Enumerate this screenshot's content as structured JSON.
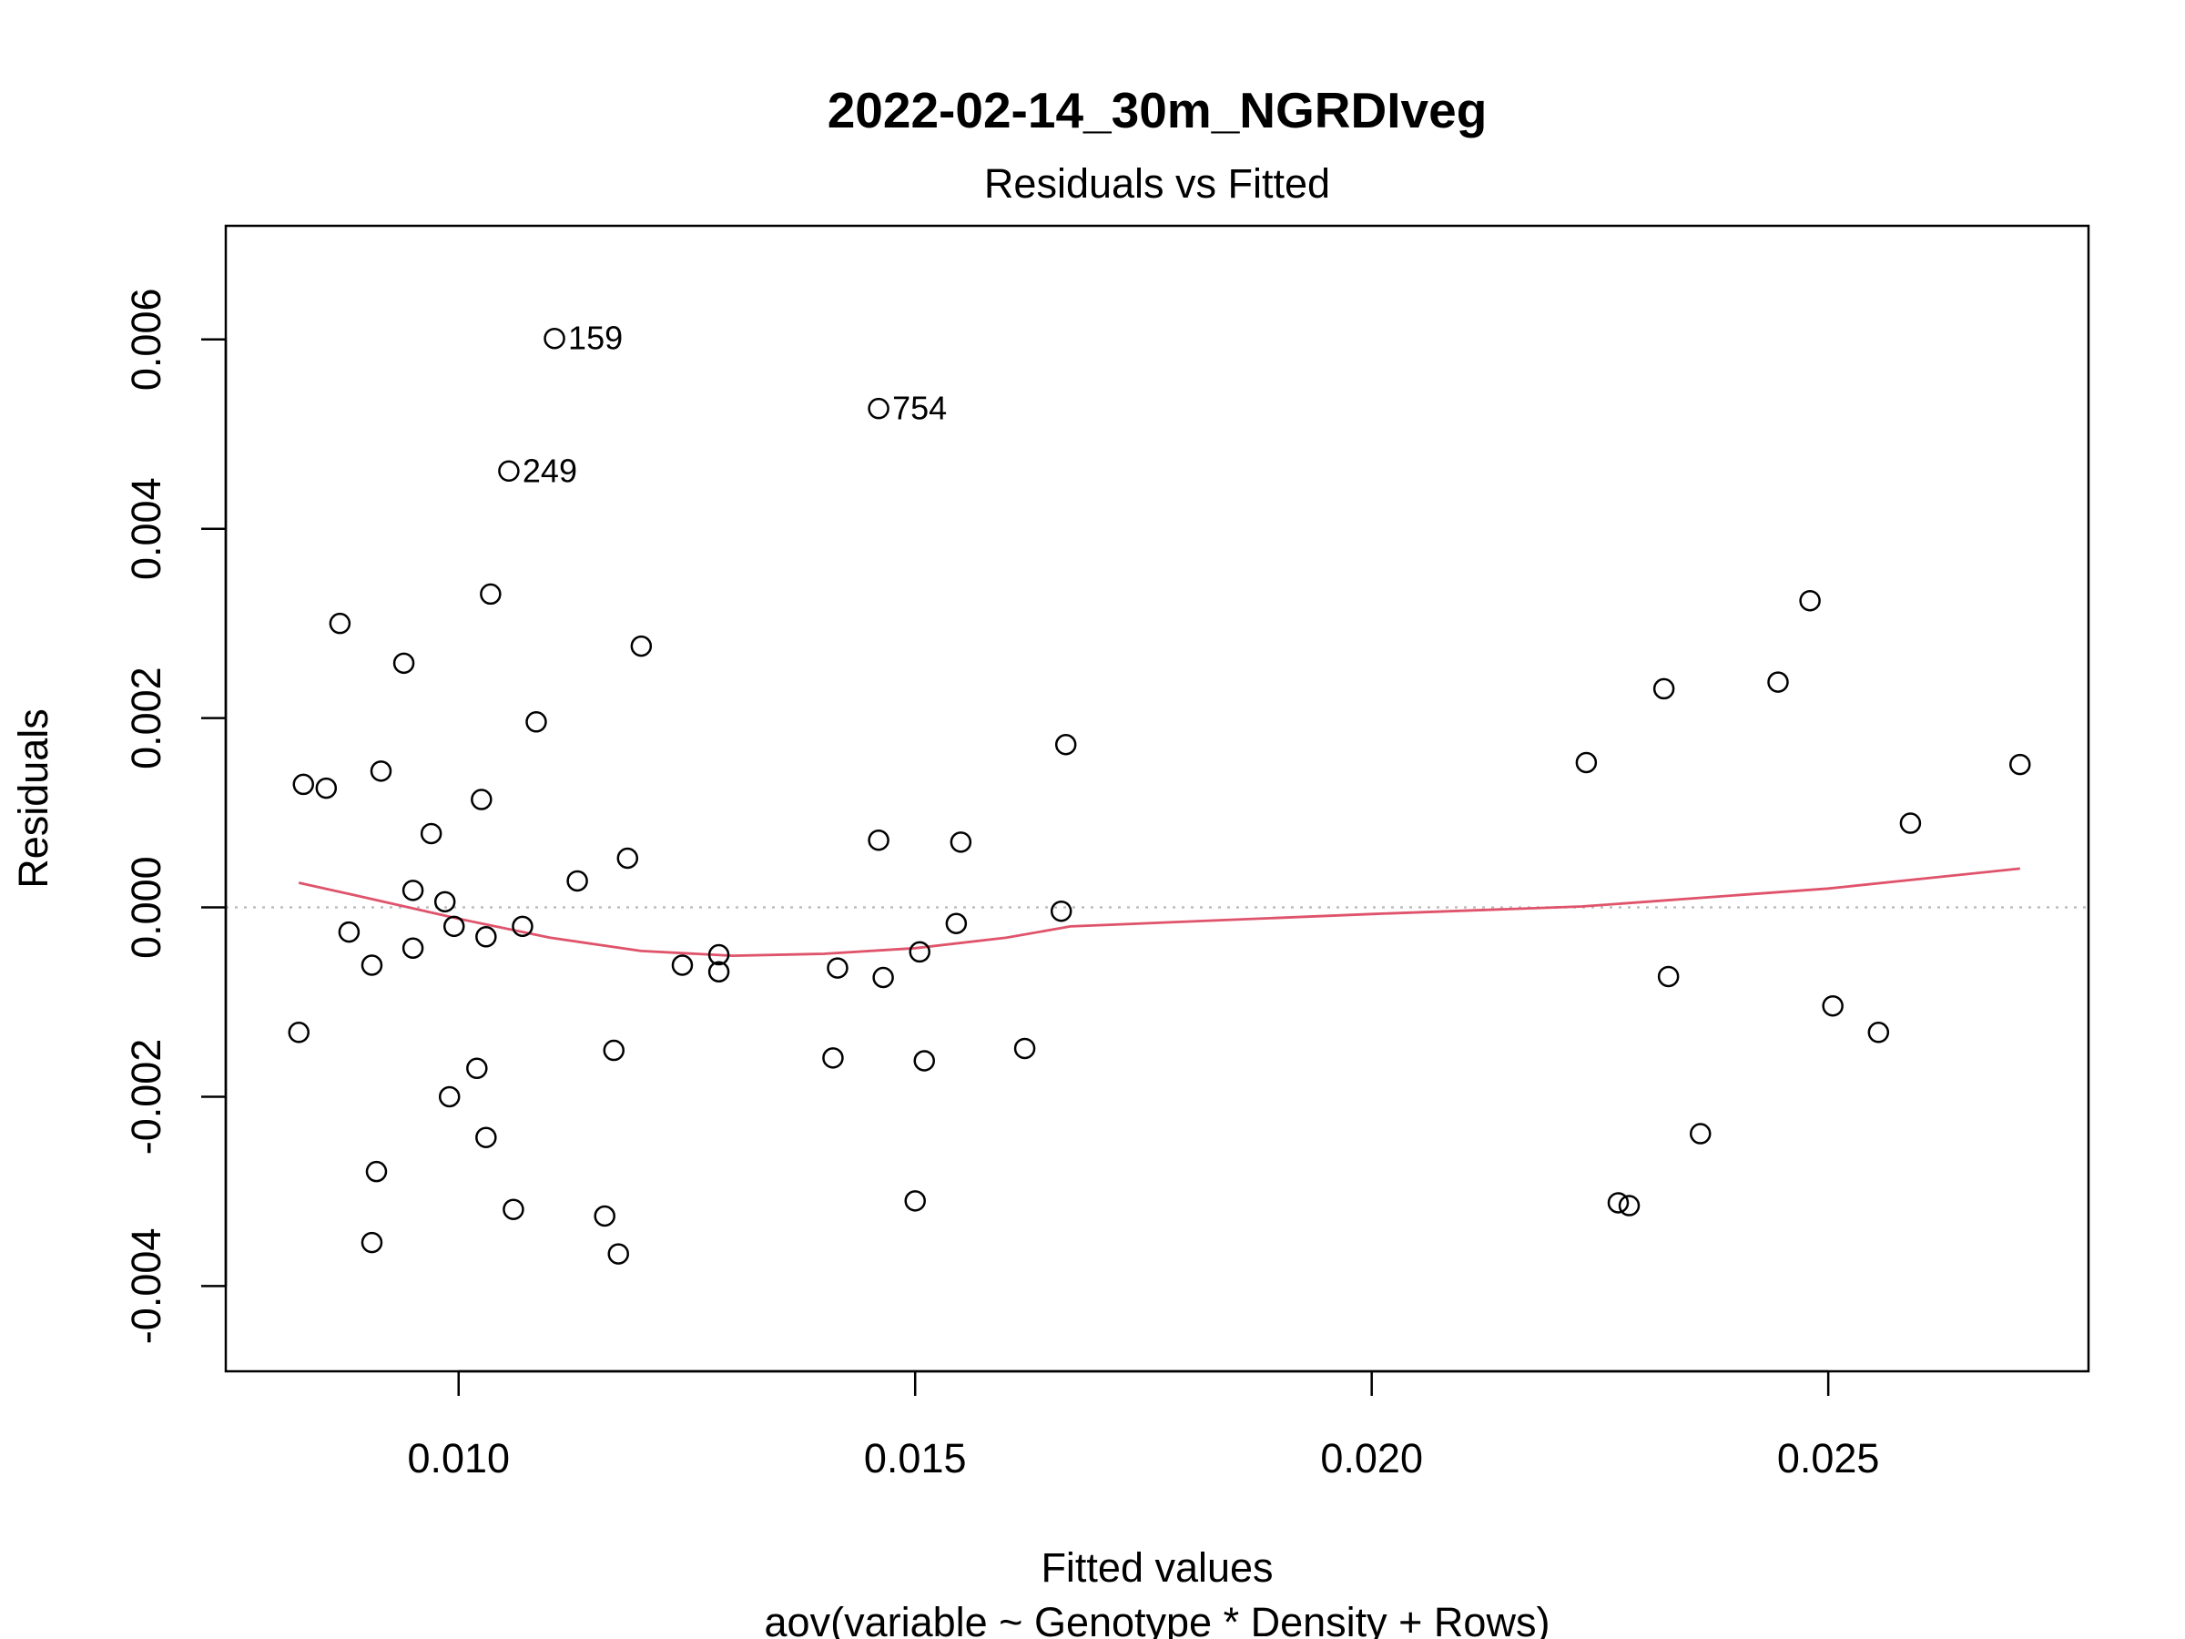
{
  "chart_data": {
    "type": "scatter",
    "title": "2022-02-14_30m_NGRDIveg",
    "subtitle": "Residuals vs Fitted",
    "xlabel": "Fitted values",
    "xlabel2": "aov(variable ~ Genotype * Density + Rows)",
    "ylabel": "Residuals",
    "xlim": [
      0.00745,
      0.02785
    ],
    "ylim": [
      -0.0049,
      0.0072
    ],
    "xticks": [
      0.01,
      0.015,
      0.02,
      0.025
    ],
    "xtick_labels": [
      "0.010",
      "0.015",
      "0.020",
      "0.025"
    ],
    "yticks": [
      -0.004,
      -0.002,
      0.0,
      0.002,
      0.004,
      0.006
    ],
    "ytick_labels": [
      "-0.004",
      "-0.002",
      "0.000",
      "0.002",
      "0.004",
      "0.006"
    ],
    "reference_line_y": 0,
    "colors": {
      "points": "#000000",
      "smooth": "#DF536B",
      "reference": "#BEBEBE"
    },
    "points": [
      {
        "x": 0.01105,
        "y": 0.00601,
        "label": "159"
      },
      {
        "x": 0.0146,
        "y": 0.00527,
        "label": "754"
      },
      {
        "x": 0.01055,
        "y": 0.00461,
        "label": "249"
      },
      {
        "x": 0.0087,
        "y": 0.003
      },
      {
        "x": 0.0094,
        "y": 0.00258
      },
      {
        "x": 0.01035,
        "y": 0.00331
      },
      {
        "x": 0.012,
        "y": 0.00276
      },
      {
        "x": 0.01085,
        "y": 0.00196
      },
      {
        "x": 0.0083,
        "y": 0.0013
      },
      {
        "x": 0.00855,
        "y": 0.00126
      },
      {
        "x": 0.00915,
        "y": 0.00144
      },
      {
        "x": 0.01025,
        "y": 0.00114
      },
      {
        "x": 0.0097,
        "y": 0.00078
      },
      {
        "x": 0.01185,
        "y": 0.00052
      },
      {
        "x": 0.0113,
        "y": 0.00028
      },
      {
        "x": 0.0095,
        "y": 0.00018
      },
      {
        "x": 0.00985,
        "y": 6e-05
      },
      {
        "x": 0.00995,
        "y": -0.0002
      },
      {
        "x": 0.0107,
        "y": -0.0002
      },
      {
        "x": 0.0088,
        "y": -0.00026
      },
      {
        "x": 0.0103,
        "y": -0.00031
      },
      {
        "x": 0.0095,
        "y": -0.00043
      },
      {
        "x": 0.00905,
        "y": -0.00061
      },
      {
        "x": 0.00825,
        "y": -0.00132
      },
      {
        "x": 0.0102,
        "y": -0.0017
      },
      {
        "x": 0.0099,
        "y": -0.002
      },
      {
        "x": 0.0103,
        "y": -0.00243
      },
      {
        "x": 0.0091,
        "y": -0.00279
      },
      {
        "x": 0.00905,
        "y": -0.00354
      },
      {
        "x": 0.0106,
        "y": -0.00319
      },
      {
        "x": 0.0116,
        "y": -0.00326
      },
      {
        "x": 0.01175,
        "y": -0.00366
      },
      {
        "x": 0.0117,
        "y": -0.00151
      },
      {
        "x": 0.01245,
        "y": -0.00061
      },
      {
        "x": 0.01285,
        "y": -0.0005
      },
      {
        "x": 0.01285,
        "y": -0.00068
      },
      {
        "x": 0.01415,
        "y": -0.00064
      },
      {
        "x": 0.0141,
        "y": -0.00159
      },
      {
        "x": 0.0146,
        "y": 0.00071
      },
      {
        "x": 0.01465,
        "y": -0.00074
      },
      {
        "x": 0.01505,
        "y": -0.00047
      },
      {
        "x": 0.0151,
        "y": -0.00162
      },
      {
        "x": 0.015,
        "y": -0.0031
      },
      {
        "x": 0.0155,
        "y": 0.00069
      },
      {
        "x": 0.01545,
        "y": -0.00017
      },
      {
        "x": 0.0162,
        "y": -0.00149
      },
      {
        "x": 0.01665,
        "y": 0.00172
      },
      {
        "x": 0.0166,
        "y": -4e-05
      },
      {
        "x": 0.02235,
        "y": 0.00153
      },
      {
        "x": 0.0232,
        "y": 0.00231
      },
      {
        "x": 0.02325,
        "y": -0.00073
      },
      {
        "x": 0.0236,
        "y": -0.00239
      },
      {
        "x": 0.0227,
        "y": -0.00312
      },
      {
        "x": 0.02282,
        "y": -0.00315
      },
      {
        "x": 0.02445,
        "y": 0.00238
      },
      {
        "x": 0.0248,
        "y": 0.00324
      },
      {
        "x": 0.02505,
        "y": -0.00104
      },
      {
        "x": 0.02555,
        "y": -0.00132
      },
      {
        "x": 0.0259,
        "y": 0.00089
      },
      {
        "x": 0.0271,
        "y": 0.00151
      }
    ],
    "smooth": {
      "name": "",
      "x": [
        0.00825,
        0.009,
        0.01,
        0.011,
        0.012,
        0.013,
        0.014,
        0.015,
        0.016,
        0.0167,
        0.02,
        0.0223,
        0.025,
        0.0271
      ],
      "y": [
        0.00026,
        0.0001,
        -0.00012,
        -0.00032,
        -0.00046,
        -0.00051,
        -0.00049,
        -0.00043,
        -0.00032,
        -0.0002,
        -7e-05,
        1e-05,
        0.0002,
        0.00041
      ]
    }
  }
}
